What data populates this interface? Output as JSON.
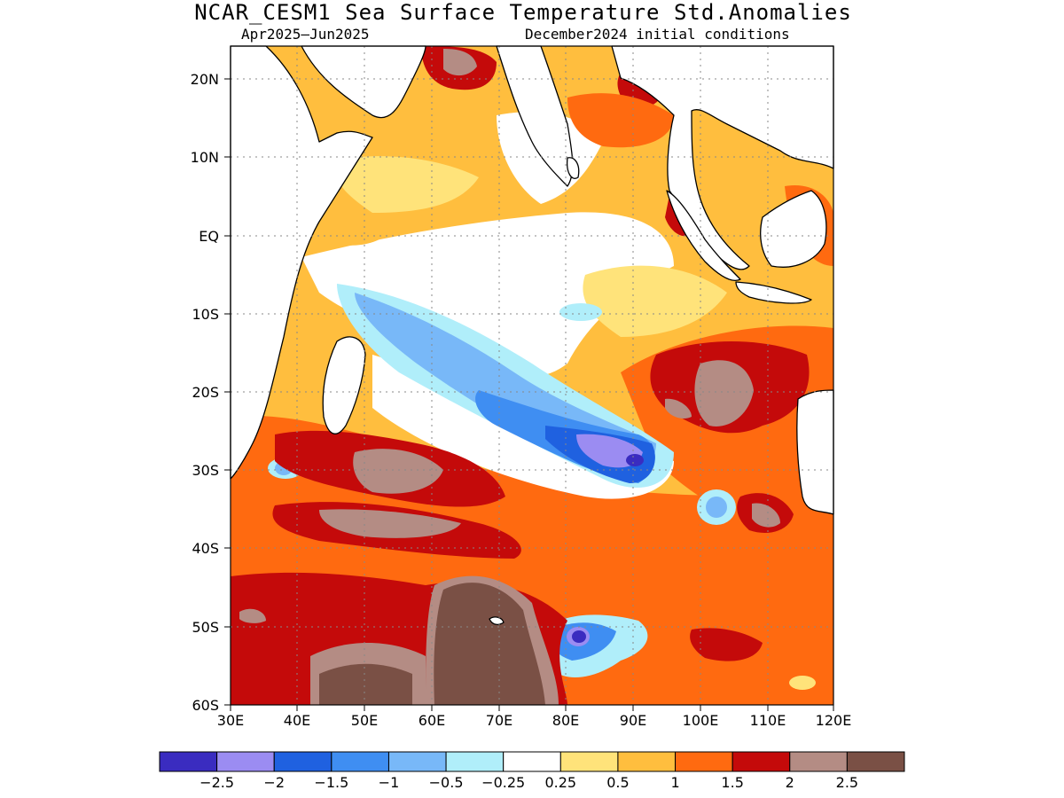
{
  "header": {
    "title": "NCAR_CESM1 Sea Surface Temperature Std.Anomalies",
    "period": "Apr2025–Jun2025",
    "init": "December2024 initial conditions"
  },
  "map": {
    "lon_range": [
      30,
      120
    ],
    "lat_range": [
      -60,
      24
    ],
    "lat_ticks": [
      "20N",
      "10N",
      "EQ",
      "10S",
      "20S",
      "30S",
      "40S",
      "50S",
      "60S"
    ],
    "lon_ticks": [
      "30E",
      "40E",
      "50E",
      "60E",
      "70E",
      "80E",
      "90E",
      "100E",
      "110E",
      "120E"
    ]
  },
  "colorbar": {
    "colors": [
      "#3a2cc0",
      "#9b8cf2",
      "#1f61e0",
      "#3f8ef2",
      "#78b8f8",
      "#b0eefa",
      "#ffffff",
      "#ffe37a",
      "#ffbe3e",
      "#ff6a10",
      "#c40a0a",
      "#b48c84",
      "#7a5045"
    ],
    "labels": [
      "−2.5",
      "−2",
      "−1.5",
      "−1",
      "−0.5",
      "−0.25",
      "0.25",
      "0.5",
      "1",
      "1.5",
      "2",
      "2.5"
    ]
  }
}
